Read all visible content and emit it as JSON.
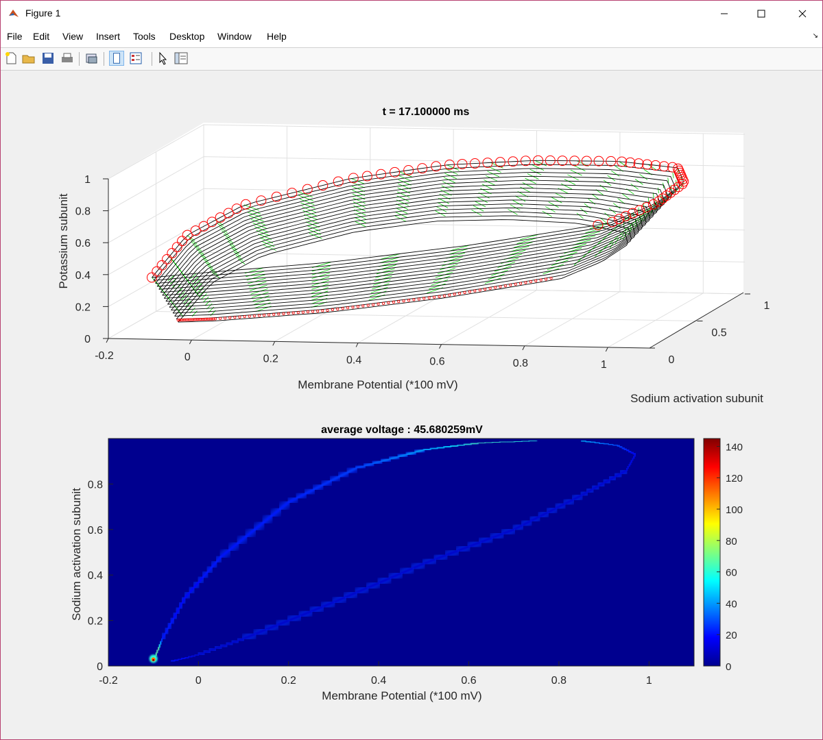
{
  "window": {
    "title": "Figure 1",
    "minimize_icon": "minimize-icon",
    "maximize_icon": "maximize-icon",
    "close_icon": "close-icon"
  },
  "menu": [
    "File",
    "Edit",
    "View",
    "Insert",
    "Tools",
    "Desktop",
    "Window",
    "Help"
  ],
  "toolbar": [
    "new-figure-icon",
    "open-file-icon",
    "save-icon",
    "print-icon",
    "link-plot-icon",
    "hide-plot-tools-icon",
    "show-plot-tools-icon",
    "edit-plot-icon",
    "open-property-inspector-icon"
  ],
  "top_plot": {
    "title": "t = 17.100000 ms",
    "xlabel": "Membrane Potential (*100 mV)",
    "ylabel": "Sodium activation subunit",
    "zlabel": "Potassium subunit",
    "x_ticks": [
      "-0.2",
      "0",
      "0.2",
      "0.4",
      "0.6",
      "0.8",
      "1"
    ],
    "y_ticks": [
      "0",
      "0.5",
      "1"
    ],
    "z_ticks": [
      "0",
      "0.2",
      "0.4",
      "0.6",
      "0.8",
      "1"
    ],
    "colors": {
      "markers": "#ff0000",
      "lines": "#000000",
      "quiver": "#00cc00"
    }
  },
  "bottom_plot": {
    "title": "average voltage : 45.680259mV",
    "xlabel": "Membrane Potential (*100 mV)",
    "ylabel": "Sodium activation subunit",
    "x_ticks": [
      "-0.2",
      "0",
      "0.2",
      "0.4",
      "0.6",
      "0.8",
      "1"
    ],
    "y_ticks": [
      "0",
      "0.2",
      "0.4",
      "0.6",
      "0.8"
    ],
    "colorbar_ticks": [
      "0",
      "20",
      "40",
      "60",
      "80",
      "100",
      "120",
      "140"
    ],
    "colors": {
      "background": "#00008f"
    }
  },
  "chart_data": [
    {
      "type": "scatter",
      "title": "t = 17.100000 ms",
      "xlabel": "Membrane Potential (*100 mV)",
      "ylabel": "Sodium activation subunit",
      "zlabel": "Potassium subunit",
      "xlim": [
        -0.2,
        1.1
      ],
      "ylim": [
        0,
        1
      ],
      "zlim": [
        0,
        1
      ],
      "grid": true,
      "series": [
        {
          "x": [
            -0.1,
            -0.08,
            0.0,
            0.2,
            0.4,
            0.6,
            0.8,
            0.95,
            1.0,
            0.98,
            0.9,
            0.6,
            0.3,
            0.0,
            -0.1
          ],
          "y": [
            0.02,
            0.3,
            0.55,
            0.8,
            0.93,
            0.98,
            0.99,
            0.95,
            0.8,
            0.6,
            0.45,
            0.3,
            0.15,
            0.05,
            0.02
          ],
          "z": [
            0.38,
            0.55,
            0.66,
            0.75,
            0.8,
            0.82,
            0.82,
            0.8,
            0.76,
            0.7,
            0.62,
            0.52,
            0.45,
            0.4,
            0.38
          ]
        }
      ]
    },
    {
      "type": "heatmap",
      "title": "average voltage : 45.680259mV",
      "xlabel": "Membrane Potential (*100 mV)",
      "ylabel": "Sodium activation subunit",
      "xlim": [
        -0.2,
        1.1
      ],
      "ylim": [
        0,
        1
      ],
      "clim": [
        0,
        145
      ],
      "colorbar_ticks": [
        0,
        20,
        40,
        60,
        80,
        100,
        120,
        140
      ],
      "ridge": {
        "x": [
          -0.1,
          -0.08,
          -0.03,
          0.05,
          0.2,
          0.35,
          0.5,
          0.62,
          0.75,
          0.85,
          0.93,
          0.97,
          0.95,
          0.85,
          0.7,
          0.5,
          0.3,
          0.1,
          0.0,
          -0.06,
          -0.1
        ],
        "y": [
          0.02,
          0.12,
          0.3,
          0.48,
          0.72,
          0.87,
          0.95,
          0.98,
          0.99,
          0.99,
          0.97,
          0.93,
          0.86,
          0.75,
          0.6,
          0.45,
          0.28,
          0.12,
          0.05,
          0.02,
          0.02
        ],
        "intensity": [
          145,
          20,
          18,
          20,
          22,
          28,
          45,
          65,
          60,
          50,
          30,
          15,
          12,
          10,
          10,
          10,
          10,
          10,
          10,
          20,
          145
        ]
      }
    }
  ]
}
